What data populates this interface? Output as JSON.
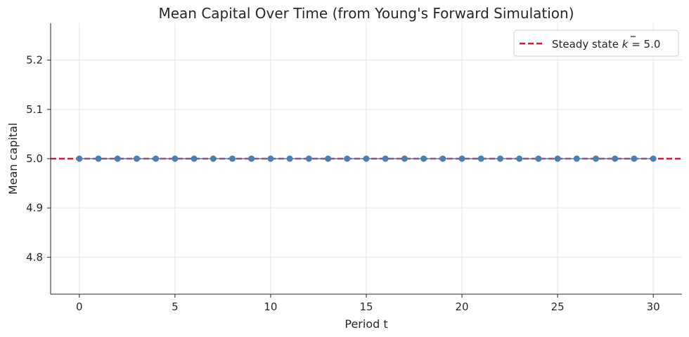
{
  "chart_data": {
    "type": "line",
    "title": "Mean Capital Over Time (from Young's Forward Simulation)",
    "xlabel": "Period t",
    "ylabel": "Mean capital",
    "xlim": [
      -1.5,
      31.5
    ],
    "ylim": [
      4.725,
      5.275
    ],
    "xticks": [
      0,
      5,
      10,
      15,
      20,
      25,
      30
    ],
    "yticks": [
      4.8,
      4.9,
      5.0,
      5.1,
      5.2
    ],
    "ytick_labels": [
      "4.8",
      "4.9",
      "5.0",
      "5.1",
      "5.2"
    ],
    "grid": true,
    "legend_position": "top-right",
    "series": [
      {
        "color": "#4a7fb0",
        "marker": "circle",
        "x": [
          0,
          1,
          2,
          3,
          4,
          5,
          6,
          7,
          8,
          9,
          10,
          11,
          12,
          13,
          14,
          15,
          16,
          17,
          18,
          19,
          20,
          21,
          22,
          23,
          24,
          25,
          26,
          27,
          28,
          29,
          30
        ],
        "values": [
          5.0,
          5.0,
          5.0,
          5.0,
          5.0,
          5.0,
          5.0,
          5.0,
          5.0,
          5.0,
          5.0,
          5.0,
          5.0,
          5.0,
          5.0,
          5.0,
          5.0,
          5.0,
          5.0,
          5.0,
          5.0,
          5.0,
          5.0,
          5.0,
          5.0,
          5.0,
          5.0,
          5.0,
          5.0,
          5.0,
          5.0
        ]
      }
    ],
    "reference_lines": [
      {
        "name_prefix": "Steady state ",
        "name_symbol": "k",
        "name_suffix": " = 5.0",
        "y": 5.0,
        "color": "#d6163c",
        "style": "dashed"
      }
    ]
  }
}
